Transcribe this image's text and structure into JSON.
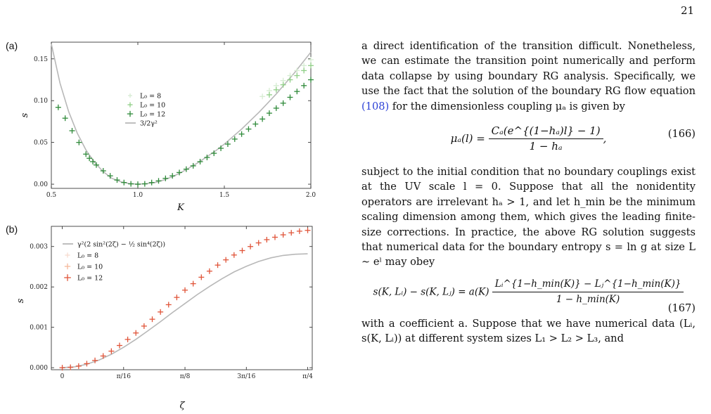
{
  "page_number": "21",
  "panel_a": {
    "label": "(a)",
    "xlabel": "K",
    "ylabel": "s",
    "xticks": [
      "0.5",
      "1.0",
      "1.5",
      "2.0"
    ],
    "yticks": [
      "0.00",
      "0.05",
      "0.10",
      "0.15"
    ],
    "legend": [
      "L₀ = 8",
      "L₀ = 10",
      "L₀ = 12",
      "3/2γ²"
    ]
  },
  "panel_b": {
    "label": "(b)",
    "xlabel": "ζ",
    "ylabel": "s",
    "xticks": [
      "0",
      "π/16",
      "π/8",
      "3π/16",
      "π/4"
    ],
    "yticks": [
      "0.000",
      "0.001",
      "0.002",
      "0.003"
    ],
    "legend": [
      "γ²(2 sin²(2ζ) − ½ sin⁴(2ζ))",
      "L₀ = 8",
      "L₀ = 10",
      "L₀ = 12"
    ]
  },
  "chart_data": [
    {
      "type": "scatter",
      "xlabel": "K",
      "ylabel": "s",
      "xlim": [
        0.5,
        2.0
      ],
      "ylim": [
        -0.005,
        0.17
      ],
      "grid": false,
      "legend_position": "upper-center",
      "series": [
        {
          "name": "L₀ = 8",
          "color": "#d6ecd2",
          "marker": "plus",
          "x": [
            1.72,
            1.76,
            1.8,
            1.84,
            1.88,
            1.92,
            1.96,
            2.0
          ],
          "y": [
            0.105,
            0.112,
            0.118,
            0.124,
            0.13,
            0.136,
            0.142,
            0.149
          ]
        },
        {
          "name": "L₀ = 10",
          "color": "#8fcf86",
          "marker": "plus",
          "x": [
            1.76,
            1.8,
            1.84,
            1.88,
            1.92,
            1.96,
            2.0
          ],
          "y": [
            0.107,
            0.113,
            0.119,
            0.125,
            0.13,
            0.136,
            0.142
          ]
        },
        {
          "name": "L₀ = 12",
          "color": "#2f8a3a",
          "marker": "plus",
          "x": [
            0.54,
            0.58,
            0.62,
            0.66,
            0.7,
            0.72,
            0.74,
            0.76,
            0.8,
            0.84,
            0.88,
            0.92,
            0.96,
            1.0,
            1.04,
            1.08,
            1.12,
            1.16,
            1.2,
            1.24,
            1.28,
            1.32,
            1.36,
            1.4,
            1.44,
            1.48,
            1.52,
            1.56,
            1.6,
            1.64,
            1.68,
            1.72,
            1.76,
            1.8,
            1.84,
            1.88,
            1.92,
            1.96,
            2.0
          ],
          "y": [
            0.092,
            0.079,
            0.064,
            0.05,
            0.036,
            0.031,
            0.027,
            0.023,
            0.016,
            0.01,
            0.005,
            0.002,
            0.0004,
            0.0,
            0.0004,
            0.002,
            0.004,
            0.007,
            0.01,
            0.014,
            0.018,
            0.022,
            0.027,
            0.032,
            0.037,
            0.043,
            0.048,
            0.054,
            0.06,
            0.066,
            0.072,
            0.078,
            0.085,
            0.091,
            0.097,
            0.104,
            0.111,
            0.118,
            0.125
          ]
        },
        {
          "name": "3/2γ²",
          "color": "#b8b8b8",
          "marker": "line",
          "x": [
            0.5,
            0.55,
            0.6,
            0.65,
            0.7,
            0.75,
            0.8,
            0.85,
            0.9,
            0.95,
            1.0,
            1.05,
            1.1,
            1.15,
            1.2,
            1.25,
            1.3,
            1.35,
            1.4,
            1.45,
            1.5,
            1.55,
            1.6,
            1.65,
            1.7,
            1.75,
            1.8,
            1.85,
            1.9,
            1.95,
            2.0
          ],
          "y": [
            0.168,
            0.121,
            0.087,
            0.061,
            0.041,
            0.026,
            0.015,
            0.007,
            0.003,
            0.0007,
            0.0,
            0.0006,
            0.002,
            0.005,
            0.009,
            0.014,
            0.02,
            0.026,
            0.033,
            0.04,
            0.048,
            0.057,
            0.066,
            0.076,
            0.086,
            0.097,
            0.108,
            0.12,
            0.132,
            0.145,
            0.158
          ]
        }
      ]
    },
    {
      "type": "scatter",
      "xlabel": "ζ",
      "ylabel": "s",
      "xlim": [
        -0.035,
        0.8
      ],
      "ylim": [
        -5e-05,
        0.0035
      ],
      "grid": false,
      "legend_position": "upper-left",
      "series": [
        {
          "name": "γ²(2 sin²(2ζ) − ½ sin⁴(2ζ))",
          "color": "#b8b8b8",
          "marker": "line",
          "x": [
            0.0,
            0.0393,
            0.0785,
            0.1178,
            0.1571,
            0.1963,
            0.2356,
            0.2749,
            0.3142,
            0.3534,
            0.3927,
            0.432,
            0.4712,
            0.5105,
            0.5498,
            0.589,
            0.6283,
            0.6676,
            0.7069,
            0.7461,
            0.7854
          ],
          "y": [
            0.0,
            2.2e-05,
            8.5e-05,
            0.000191,
            0.000333,
            0.000505,
            0.000702,
            0.000917,
            0.00114,
            0.00137,
            0.00159,
            0.00181,
            0.00201,
            0.0022,
            0.00237,
            0.00251,
            0.00263,
            0.00272,
            0.00278,
            0.00281,
            0.00282
          ]
        },
        {
          "name": "L₀ = 8",
          "color": "#f7dcd0",
          "marker": "plus",
          "x": [],
          "y": []
        },
        {
          "name": "L₀ = 10",
          "color": "#f4b89a",
          "marker": "plus",
          "x": [],
          "y": []
        },
        {
          "name": "L₀ = 12",
          "color": "#e0553a",
          "marker": "plus",
          "x": [
            0.0,
            0.0262,
            0.0524,
            0.0785,
            0.1047,
            0.1309,
            0.1571,
            0.1833,
            0.2094,
            0.2356,
            0.2618,
            0.288,
            0.3142,
            0.3403,
            0.3665,
            0.3927,
            0.4189,
            0.4451,
            0.4712,
            0.4974,
            0.5236,
            0.5498,
            0.576,
            0.6021,
            0.6283,
            0.6545,
            0.6807,
            0.7069,
            0.733,
            0.7592,
            0.7854
          ],
          "y": [
            0.0,
            1e-05,
            4e-05,
            0.0001,
            0.00018,
            0.00029,
            0.00041,
            0.00055,
            0.0007,
            0.00086,
            0.00103,
            0.0012,
            0.00138,
            0.00156,
            0.00174,
            0.00192,
            0.00208,
            0.00224,
            0.00239,
            0.00254,
            0.00267,
            0.00279,
            0.0029,
            0.003,
            0.00309,
            0.00317,
            0.00323,
            0.00329,
            0.00334,
            0.00338,
            0.0034
          ]
        }
      ]
    }
  ],
  "text": {
    "p1": "a direct identification of the transition difficult. Nonetheless, we can estimate the transition point numerically and perform data collapse by using boundary RG analysis. Specifically, we use the fact that the solution of the boundary RG flow equation",
    "p1_ref": "(108)",
    "p1_tail": "for the dimensionless coupling μₐ is given by",
    "eq166_lhs": "μₐ(l) =",
    "eq166_num": "Cₐ(e^{(1−hₐ)l} − 1)",
    "eq166_den": "1 − hₐ",
    "eq166_tag": "(166)",
    "p2": "subject to the initial condition that no boundary couplings exist at the UV scale l = 0. Suppose that all the nonidentity operators are irrelevant hₐ > 1, and let h_min be the minimum scaling dimension among them, which gives the leading finite-size corrections. In practice, the above RG solution suggests that numerical data for the boundary entropy s = ln g at size L ∼ eˡ may obey",
    "eq167_lhs": "s(K, Lᵢ) − s(K, Lⱼ) = a(K)",
    "eq167_num": "Lᵢ^{1−h_min(K)} − Lⱼ^{1−h_min(K)}",
    "eq167_den": "1 − h_min(K)",
    "eq167_tag": "(167)",
    "p3": "with a coefficient a. Suppose that we have numerical data (Lᵢ, s(K, Lᵢ)) at different system sizes L₁ > L₂ > L₃, and"
  }
}
